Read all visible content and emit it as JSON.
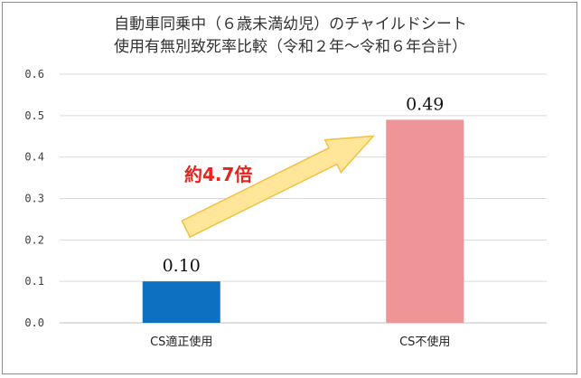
{
  "chart_data": {
    "type": "bar",
    "title_lines": [
      "自動車同乗中（６歳未満幼児）のチャイルドシート",
      "使用有無別致死率比較（令和２年～令和６年合計）"
    ],
    "categories": [
      "CS適正使用",
      "CS不使用"
    ],
    "values": [
      0.1,
      0.49
    ],
    "data_labels": [
      "0.10",
      "0.49"
    ],
    "bar_colors": [
      "#0e70c0",
      "#ef9597"
    ],
    "ylim": [
      0,
      0.6
    ],
    "yticks": [
      "0.0",
      "0.1",
      "0.2",
      "0.3",
      "0.4",
      "0.5",
      "0.6"
    ],
    "grid": true,
    "xlabel": "",
    "ylabel": "",
    "annotation": {
      "text": "約4.7倍",
      "color": "#e8231e",
      "arrow_color": "#ffe699",
      "arrow_border": "#f2c043"
    }
  }
}
